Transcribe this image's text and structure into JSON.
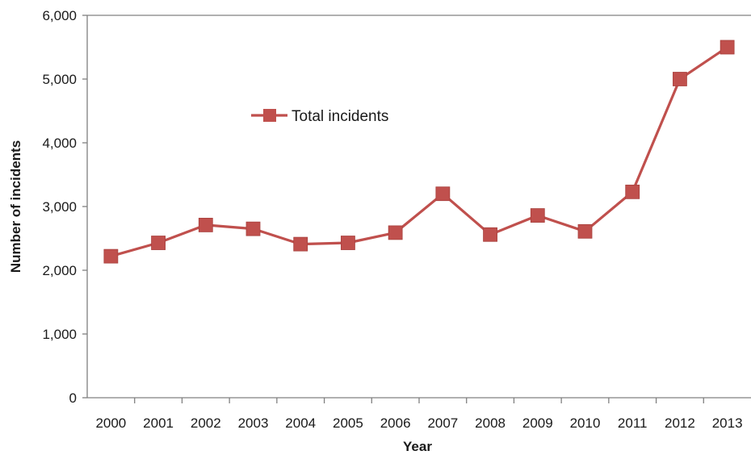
{
  "chart_data": {
    "type": "line",
    "title": "",
    "xlabel": "Year",
    "ylabel": "Number of incidents",
    "categories": [
      "2000",
      "2001",
      "2002",
      "2003",
      "2004",
      "2005",
      "2006",
      "2007",
      "2008",
      "2009",
      "2010",
      "2011",
      "2012",
      "2013"
    ],
    "series": [
      {
        "name": "Total incidents",
        "values": [
          2220,
          2430,
          2710,
          2650,
          2410,
          2430,
          2590,
          3200,
          2560,
          2860,
          2610,
          3230,
          5000,
          5500
        ],
        "color": "#c0504d"
      }
    ],
    "ylim": [
      0,
      6000
    ],
    "yticks": [
      "0",
      "1,000",
      "2,000",
      "3,000",
      "4,000",
      "5,000",
      "6,000"
    ],
    "ytick_values": [
      0,
      1000,
      2000,
      3000,
      4000,
      5000,
      6000
    ],
    "grid": false,
    "legend_position": "top-left-inside",
    "axis_color": "#808080",
    "marker": "square"
  }
}
